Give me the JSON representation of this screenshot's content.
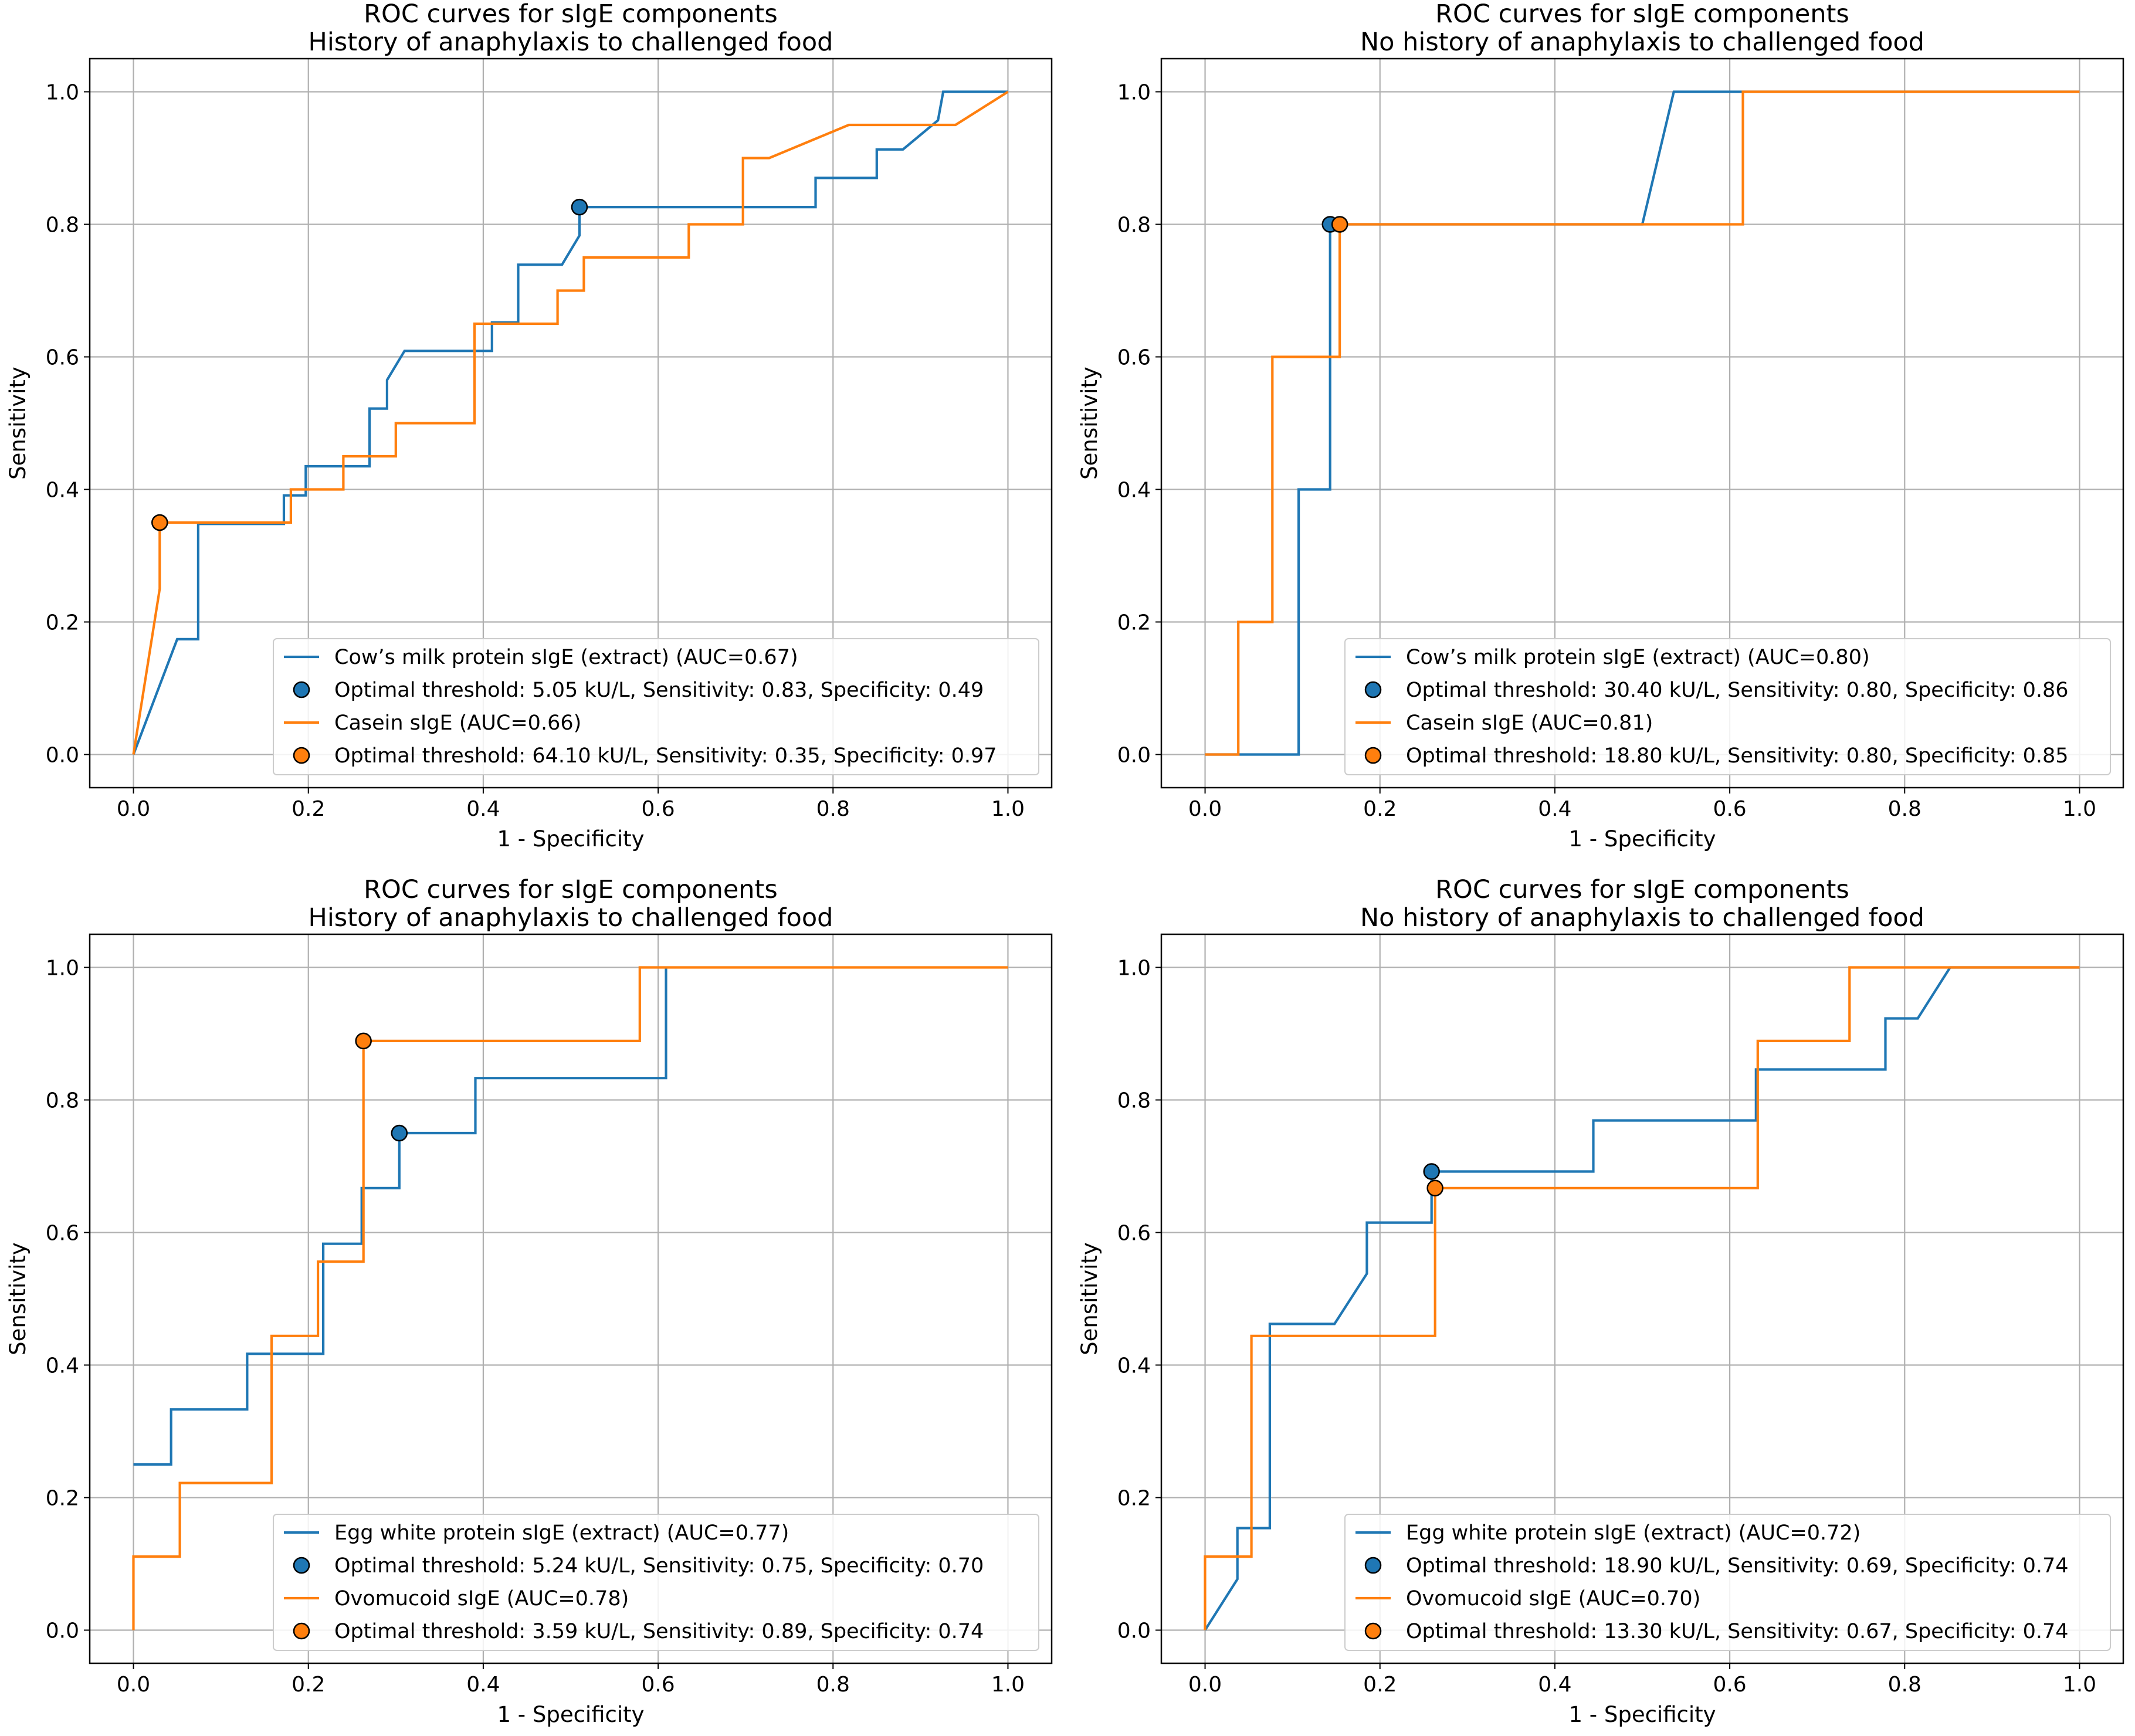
{
  "colors": {
    "blue": "#1f77b4",
    "orange": "#ff7f0e",
    "grid": "#b0b0b0",
    "axis": "#000000"
  },
  "chart_data": [
    {
      "type": "line",
      "title": "ROC curves for sIgE components",
      "subtitle": "History of anaphylaxis to challenged food",
      "xlabel": "1 - Specificity",
      "ylabel": "Sensitivity",
      "xlim": [
        -0.05,
        1.05
      ],
      "ylim": [
        -0.05,
        1.05
      ],
      "xticks": [
        "0.0",
        "0.2",
        "0.4",
        "0.6",
        "0.8",
        "1.0"
      ],
      "yticks": [
        "0.0",
        "0.2",
        "0.4",
        "0.6",
        "0.8",
        "1.0"
      ],
      "grid": true,
      "legend_position": "bottom-right",
      "series": [
        {
          "name": "Cow’s milk protein sIgE (extract) (AUC=0.67)",
          "color": "blue",
          "points": [
            [
              0,
              0
            ],
            [
              0.05,
              0.174
            ],
            [
              0.074,
              0.174
            ],
            [
              0.074,
              0.348
            ],
            [
              0.172,
              0.348
            ],
            [
              0.172,
              0.391
            ],
            [
              0.197,
              0.391
            ],
            [
              0.197,
              0.435
            ],
            [
              0.27,
              0.435
            ],
            [
              0.27,
              0.522
            ],
            [
              0.29,
              0.522
            ],
            [
              0.29,
              0.565
            ],
            [
              0.31,
              0.609
            ],
            [
              0.41,
              0.609
            ],
            [
              0.41,
              0.652
            ],
            [
              0.44,
              0.652
            ],
            [
              0.44,
              0.739
            ],
            [
              0.49,
              0.739
            ],
            [
              0.51,
              0.783
            ],
            [
              0.51,
              0.826
            ],
            [
              0.78,
              0.826
            ],
            [
              0.78,
              0.87
            ],
            [
              0.85,
              0.87
            ],
            [
              0.85,
              0.913
            ],
            [
              0.88,
              0.913
            ],
            [
              0.92,
              0.957
            ],
            [
              0.926,
              1.0
            ],
            [
              1.0,
              1.0
            ]
          ],
          "marker": {
            "label": "Optimal threshold: 5.05 kU/L, Sensitivity: 0.83, Specificity: 0.49",
            "x": 0.51,
            "y": 0.826
          }
        },
        {
          "name": "Casein sIgE (AUC=0.66)",
          "color": "orange",
          "points": [
            [
              0,
              0
            ],
            [
              0.03,
              0.25
            ],
            [
              0.03,
              0.35
            ],
            [
              0.18,
              0.35
            ],
            [
              0.18,
              0.4
            ],
            [
              0.24,
              0.4
            ],
            [
              0.24,
              0.45
            ],
            [
              0.3,
              0.45
            ],
            [
              0.3,
              0.5
            ],
            [
              0.39,
              0.5
            ],
            [
              0.39,
              0.65
            ],
            [
              0.485,
              0.65
            ],
            [
              0.485,
              0.7
            ],
            [
              0.515,
              0.7
            ],
            [
              0.515,
              0.75
            ],
            [
              0.635,
              0.75
            ],
            [
              0.635,
              0.8
            ],
            [
              0.697,
              0.8
            ],
            [
              0.697,
              0.9
            ],
            [
              0.727,
              0.9
            ],
            [
              0.818,
              0.95
            ],
            [
              0.94,
              0.95
            ],
            [
              1.0,
              1.0
            ]
          ],
          "marker": {
            "label": "Optimal threshold: 64.10 kU/L, Sensitivity: 0.35, Specificity: 0.97",
            "x": 0.03,
            "y": 0.35
          }
        }
      ]
    },
    {
      "type": "line",
      "title": "ROC curves for sIgE components",
      "subtitle": "No history of anaphylaxis to challenged food",
      "xlabel": "1 - Specificity",
      "ylabel": "Sensitivity",
      "xlim": [
        -0.05,
        1.05
      ],
      "ylim": [
        -0.05,
        1.05
      ],
      "xticks": [
        "0.0",
        "0.2",
        "0.4",
        "0.6",
        "0.8",
        "1.0"
      ],
      "yticks": [
        "0.0",
        "0.2",
        "0.4",
        "0.6",
        "0.8",
        "1.0"
      ],
      "grid": true,
      "legend_position": "bottom-right",
      "series": [
        {
          "name": "Cow’s milk protein sIgE (extract) (AUC=0.80)",
          "color": "blue",
          "points": [
            [
              0,
              0
            ],
            [
              0.107,
              0
            ],
            [
              0.107,
              0.4
            ],
            [
              0.143,
              0.4
            ],
            [
              0.143,
              0.8
            ],
            [
              0.5,
              0.8
            ],
            [
              0.536,
              1.0
            ],
            [
              1.0,
              1.0
            ]
          ],
          "marker": {
            "label": "Optimal threshold: 30.40 kU/L, Sensitivity: 0.80, Specificity: 0.86",
            "x": 0.143,
            "y": 0.8
          }
        },
        {
          "name": "Casein sIgE (AUC=0.81)",
          "color": "orange",
          "points": [
            [
              0,
              0
            ],
            [
              0.038,
              0
            ],
            [
              0.038,
              0.2
            ],
            [
              0.077,
              0.2
            ],
            [
              0.077,
              0.6
            ],
            [
              0.154,
              0.6
            ],
            [
              0.154,
              0.8
            ],
            [
              0.615,
              0.8
            ],
            [
              0.615,
              1.0
            ],
            [
              1.0,
              1.0
            ]
          ],
          "marker": {
            "label": "Optimal threshold: 18.80 kU/L, Sensitivity: 0.80, Specificity: 0.85",
            "x": 0.154,
            "y": 0.8
          }
        }
      ]
    },
    {
      "type": "line",
      "title": "ROC curves for sIgE components",
      "subtitle": "History of anaphylaxis to challenged food",
      "xlabel": "1 - Specificity",
      "ylabel": "Sensitivity",
      "xlim": [
        -0.05,
        1.05
      ],
      "ylim": [
        -0.05,
        1.05
      ],
      "xticks": [
        "0.0",
        "0.2",
        "0.4",
        "0.6",
        "0.8",
        "1.0"
      ],
      "yticks": [
        "0.0",
        "0.2",
        "0.4",
        "0.6",
        "0.8",
        "1.0"
      ],
      "grid": true,
      "legend_position": "bottom-right",
      "series": [
        {
          "name": "Egg white protein sIgE (extract) (AUC=0.77)",
          "color": "blue",
          "points": [
            [
              0,
              0.25
            ],
            [
              0.043,
              0.25
            ],
            [
              0.043,
              0.333
            ],
            [
              0.13,
              0.333
            ],
            [
              0.13,
              0.417
            ],
            [
              0.217,
              0.417
            ],
            [
              0.217,
              0.583
            ],
            [
              0.261,
              0.583
            ],
            [
              0.261,
              0.667
            ],
            [
              0.304,
              0.667
            ],
            [
              0.304,
              0.75
            ],
            [
              0.391,
              0.75
            ],
            [
              0.391,
              0.833
            ],
            [
              0.609,
              0.833
            ],
            [
              0.609,
              1.0
            ]
          ],
          "marker": {
            "label": "Optimal threshold: 5.24 kU/L, Sensitivity: 0.75, Specificity: 0.70",
            "x": 0.304,
            "y": 0.75
          }
        },
        {
          "name": "Ovomucoid sIgE (AUC=0.78)",
          "color": "orange",
          "points": [
            [
              0,
              0
            ],
            [
              0,
              0.111
            ],
            [
              0.053,
              0.111
            ],
            [
              0.053,
              0.222
            ],
            [
              0.158,
              0.222
            ],
            [
              0.158,
              0.444
            ],
            [
              0.211,
              0.444
            ],
            [
              0.211,
              0.556
            ],
            [
              0.263,
              0.556
            ],
            [
              0.263,
              0.889
            ],
            [
              0.579,
              0.889
            ],
            [
              0.579,
              1.0
            ],
            [
              1.0,
              1.0
            ]
          ],
          "marker": {
            "label": "Optimal threshold: 3.59 kU/L, Sensitivity: 0.89, Specificity: 0.74",
            "x": 0.263,
            "y": 0.889
          }
        }
      ]
    },
    {
      "type": "line",
      "title": "ROC curves for sIgE components",
      "subtitle": "No history of anaphylaxis to challenged food",
      "xlabel": "1 - Specificity",
      "ylabel": "Sensitivity",
      "xlim": [
        -0.05,
        1.05
      ],
      "ylim": [
        -0.05,
        1.05
      ],
      "xticks": [
        "0.0",
        "0.2",
        "0.4",
        "0.6",
        "0.8",
        "1.0"
      ],
      "yticks": [
        "0.0",
        "0.2",
        "0.4",
        "0.6",
        "0.8",
        "1.0"
      ],
      "grid": true,
      "legend_position": "bottom-right",
      "series": [
        {
          "name": "Egg white protein sIgE (extract) (AUC=0.72)",
          "color": "blue",
          "points": [
            [
              0,
              0
            ],
            [
              0.037,
              0.077
            ],
            [
              0.037,
              0.154
            ],
            [
              0.074,
              0.154
            ],
            [
              0.074,
              0.462
            ],
            [
              0.148,
              0.462
            ],
            [
              0.185,
              0.538
            ],
            [
              0.185,
              0.615
            ],
            [
              0.259,
              0.615
            ],
            [
              0.259,
              0.692
            ],
            [
              0.444,
              0.692
            ],
            [
              0.444,
              0.769
            ],
            [
              0.63,
              0.769
            ],
            [
              0.63,
              0.846
            ],
            [
              0.778,
              0.846
            ],
            [
              0.778,
              0.923
            ],
            [
              0.815,
              0.923
            ],
            [
              0.852,
              1.0
            ],
            [
              1.0,
              1.0
            ]
          ],
          "marker": {
            "label": "Optimal threshold: 18.90 kU/L, Sensitivity: 0.69, Specificity: 0.74",
            "x": 0.259,
            "y": 0.692
          }
        },
        {
          "name": "Ovomucoid sIgE (AUC=0.70)",
          "color": "orange",
          "points": [
            [
              0,
              0
            ],
            [
              0,
              0.111
            ],
            [
              0.053,
              0.111
            ],
            [
              0.053,
              0.444
            ],
            [
              0.263,
              0.444
            ],
            [
              0.263,
              0.667
            ],
            [
              0.632,
              0.667
            ],
            [
              0.632,
              0.889
            ],
            [
              0.737,
              0.889
            ],
            [
              0.737,
              1.0
            ],
            [
              1.0,
              1.0
            ]
          ],
          "marker": {
            "label": "Optimal threshold: 13.30 kU/L, Sensitivity: 0.67, Specificity: 0.74",
            "x": 0.263,
            "y": 0.667
          }
        }
      ]
    }
  ]
}
